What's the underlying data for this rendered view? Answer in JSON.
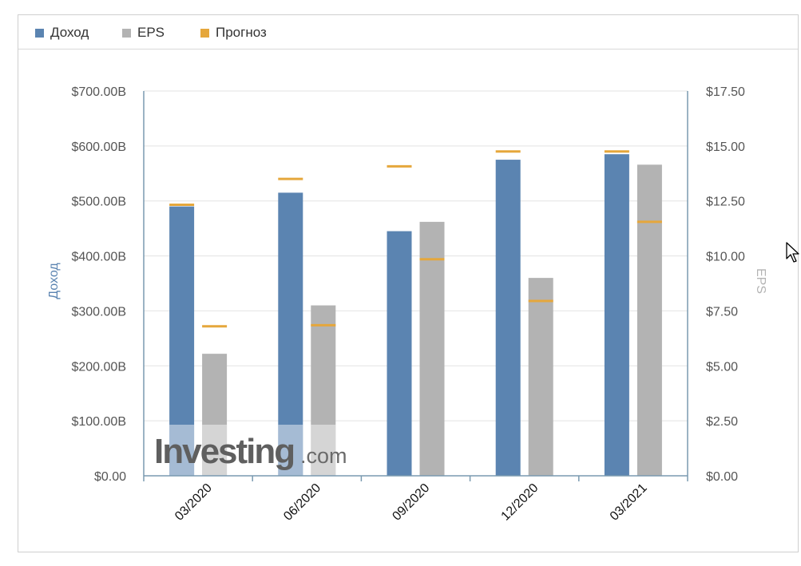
{
  "legend": {
    "items": [
      {
        "label": "Доход",
        "color": "#5b84b1"
      },
      {
        "label": "EPS",
        "color": "#b3b3b3"
      },
      {
        "label": "Прогноз",
        "color": "#e5a73c"
      }
    ]
  },
  "watermark": {
    "brand": "Investing",
    "suffix": ".com"
  },
  "chart_data": {
    "type": "bar",
    "categories": [
      "03/2020",
      "06/2020",
      "09/2020",
      "12/2020",
      "03/2021"
    ],
    "series": [
      {
        "name": "Доход",
        "axis": "left",
        "color": "#5b84b1",
        "values": [
          490,
          515,
          445,
          575,
          585
        ]
      },
      {
        "name": "EPS",
        "axis": "right",
        "color": "#b3b3b3",
        "values": [
          5.55,
          7.75,
          11.55,
          9.0,
          14.15
        ]
      }
    ],
    "forecast": {
      "name": "Прогноз",
      "color": "#e5a73c",
      "revenue": [
        493,
        540,
        563,
        590,
        590
      ],
      "eps": [
        6.8,
        6.85,
        9.85,
        7.95,
        11.55
      ]
    },
    "left_axis": {
      "label": "Доход",
      "min": 0,
      "max": 700,
      "ticks": [
        "$0.00",
        "$100.00B",
        "$200.00B",
        "$300.00B",
        "$400.00B",
        "$500.00B",
        "$600.00B",
        "$700.00B"
      ]
    },
    "right_axis": {
      "label": "EPS",
      "min": 0,
      "max": 17.5,
      "ticks": [
        "$0.00",
        "$2.50",
        "$5.00",
        "$7.50",
        "$10.00",
        "$12.50",
        "$15.00",
        "$17.50"
      ]
    },
    "grid": true,
    "legend_position": "top-left"
  }
}
